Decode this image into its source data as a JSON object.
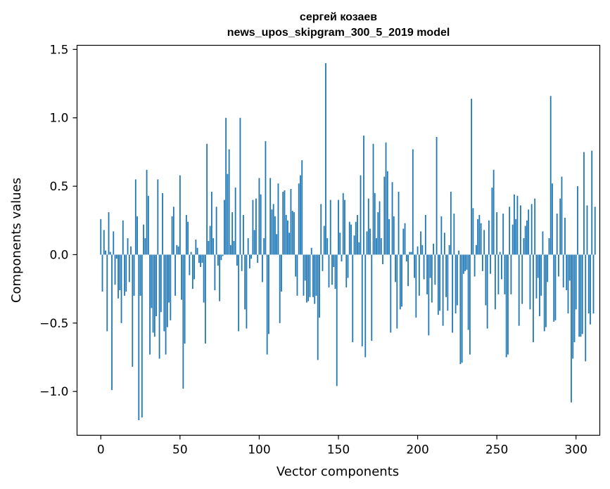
{
  "chart_data": {
    "type": "bar",
    "title_line1": "сергей козаев",
    "title_line2": "news_upos_skipgram_300_5_2019 model",
    "xlabel": "Vector components",
    "ylabel": "Components values",
    "xlim": [
      -15,
      315
    ],
    "ylim": [
      -1.32,
      1.53
    ],
    "xticks": [
      0,
      50,
      100,
      150,
      200,
      250,
      300
    ],
    "xtick_labels": [
      "0",
      "50",
      "100",
      "150",
      "200",
      "250",
      "300"
    ],
    "yticks": [
      -1.0,
      -0.5,
      0.0,
      0.5,
      1.0,
      1.5
    ],
    "ytick_labels": [
      "−1.0",
      "−0.5",
      "0.0",
      "0.5",
      "1.0",
      "1.5"
    ],
    "bar_color": "#1f77b4",
    "values": [
      0.26,
      -0.27,
      0.18,
      0.03,
      -0.56,
      0.31,
      0.02,
      -0.99,
      0.17,
      -0.22,
      -0.03,
      -0.32,
      -0.26,
      -0.5,
      0.25,
      -0.3,
      -0.27,
      0.12,
      -0.2,
      0.06,
      -0.82,
      -0.3,
      0.55,
      0.28,
      -1.21,
      -0.3,
      -1.19,
      0.22,
      0.12,
      0.62,
      0.43,
      -0.73,
      -0.39,
      -0.57,
      -0.6,
      -0.45,
      0.55,
      -0.76,
      -0.42,
      0.45,
      -0.56,
      -0.73,
      -0.53,
      -0.35,
      -0.48,
      0.28,
      0.35,
      -0.3,
      0.07,
      0.06,
      0.58,
      -0.33,
      -0.98,
      -0.65,
      0.29,
      0.24,
      -0.15,
      0.02,
      -0.25,
      -0.18,
      0.11,
      0.05,
      -0.06,
      -0.09,
      -0.06,
      -0.35,
      -0.65,
      0.81,
      0.1,
      0.21,
      0.46,
      0.12,
      -0.26,
      0.35,
      -0.08,
      -0.34,
      -0.04,
      -0.01,
      0.4,
      1.0,
      0.59,
      0.77,
      0.07,
      0.31,
      0.1,
      0.49,
      -0.08,
      -0.56,
      1.0,
      -0.12,
      0.29,
      -0.4,
      -0.54,
      0.12,
      -0.1,
      -0.03,
      0.4,
      0.18,
      0.41,
      -0.06,
      0.56,
      0.44,
      -0.2,
      0.12,
      0.83,
      -0.73,
      -0.58,
      0.56,
      0.33,
      0.37,
      0.28,
      0.15,
      0.52,
      -0.5,
      -0.27,
      0.46,
      0.47,
      0.29,
      0.25,
      0.16,
      0.48,
      0.32,
      0.31,
      -0.16,
      -0.3,
      0.52,
      0.58,
      0.69,
      -0.3,
      -0.19,
      -0.35,
      -0.34,
      -0.31,
      0.05,
      -0.31,
      -0.36,
      -0.3,
      -0.77,
      -0.46,
      0.37,
      -0.12,
      0.21,
      1.4,
      0.12,
      -0.24,
      0.4,
      -0.22,
      -0.09,
      -0.25,
      -0.96,
      0.4,
      0.16,
      -0.05,
      0.45,
      0.4,
      -0.24,
      -0.17,
      0.24,
      0.22,
      -0.64,
      0.14,
      0.24,
      0.29,
      0.09,
      0.58,
      -0.67,
      0.87,
      -0.75,
      0.17,
      0.41,
      0.19,
      -0.63,
      0.81,
      0.45,
      0.12,
      0.31,
      0.39,
      0.12,
      -0.07,
      0.57,
      0.82,
      0.61,
      0.26,
      -0.57,
      0.53,
      0.28,
      -0.2,
      -0.54,
      0.46,
      -0.4,
      -0.38,
      0.19,
      0.23,
      -0.05,
      -0.23,
      0.02,
      0.02,
      0.77,
      -0.17,
      -0.46,
      0.06,
      -0.3,
      0.17,
      0.07,
      -0.18,
      0.29,
      -0.29,
      -0.59,
      -0.17,
      -0.35,
      0.08,
      -0.22,
      0.86,
      -0.44,
      -0.41,
      0.28,
      -0.52,
      0.16,
      -0.31,
      -0.41,
      0.07,
      0.46,
      -0.57,
      0.3,
      -0.43,
      -0.37,
      0.03,
      -0.8,
      -0.79,
      -0.14,
      -0.12,
      -0.11,
      -0.55,
      -0.73,
      1.14,
      0.34,
      -0.16,
      0.07,
      0.26,
      0.29,
      0.23,
      -0.12,
      0.18,
      -0.37,
      -0.54,
      0.25,
      -0.14,
      0.49,
      0.62,
      -0.4,
      0.31,
      -0.29,
      0.02,
      -0.18,
      0.3,
      -0.29,
      -0.75,
      -0.73,
      0.35,
      -0.29,
      0.22,
      0.44,
      0.26,
      0.43,
      -0.52,
      0.36,
      -0.36,
      0.12,
      0.21,
      0.25,
      0.33,
      -0.4,
      0.37,
      -0.64,
      0.41,
      -0.32,
      -0.17,
      -0.45,
      -0.3,
      0.17,
      -0.56,
      -0.53,
      -0.2,
      0.12,
      1.16,
      0.52,
      -0.49,
      -0.48,
      0.3,
      -0.16,
      0.41,
      0.57,
      -0.24,
      0.27,
      -0.26,
      -0.43,
      -0.19,
      -1.08,
      -0.76,
      -0.64,
      -0.4,
      0.5,
      -0.6,
      -0.6,
      -0.58,
      0.75,
      -0.78,
      0.36,
      -0.43,
      -0.51,
      0.76,
      -0.43,
      0.35
    ]
  }
}
